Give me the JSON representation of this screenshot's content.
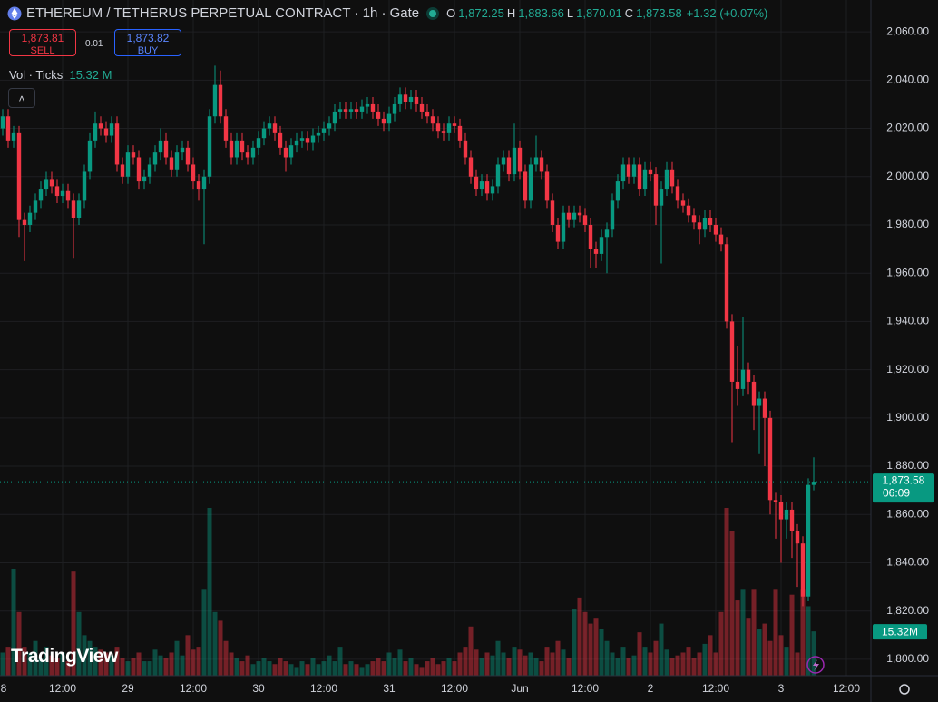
{
  "header": {
    "title": "ETHEREUM / TETHERUS PERPETUAL CONTRACT · 1h · Gate",
    "ohlc": [
      {
        "label": "O",
        "value": "1,872.25"
      },
      {
        "label": "H",
        "value": "1,883.66"
      },
      {
        "label": "L",
        "value": "1,870.01"
      },
      {
        "label": "C",
        "value": "1,873.58"
      }
    ],
    "change": "+1.32 (+0.07%)",
    "sell_price": "1,873.81",
    "sell_label": "SELL",
    "spread": "0.01",
    "buy_price": "1,873.82",
    "buy_label": "BUY",
    "volume_indicator": "Vol · Ticks",
    "volume_indicator_value": "15.32 M",
    "logo": "TradingView"
  },
  "chart_data": {
    "type": "candlestick",
    "up_color": "#089981",
    "down_color": "#f23645",
    "grid": true,
    "open": [
      2020,
      2025,
      2015,
      2018,
      1982,
      1980,
      1985,
      1990,
      1995,
      1999,
      1996,
      1992,
      1994,
      1990,
      1983,
      1990,
      2002,
      2015,
      2022,
      2020,
      2017,
      2022,
      2005,
      2000,
      2010,
      2008,
      1998,
      2000,
      2005,
      2010,
      2015,
      2008,
      2003,
      2010,
      2012,
      2005,
      1998,
      1995,
      2000,
      2025,
      2038,
      2025,
      2015,
      2008,
      2015,
      2010,
      2008,
      2012,
      2016,
      2020,
      2022,
      2018,
      2012,
      2008,
      2013,
      2015,
      2016,
      2014,
      2017,
      2018,
      2020,
      2022,
      2027,
      2028,
      2027,
      2028,
      2027,
      2029,
      2030,
      2027,
      2024,
      2022,
      2026,
      2030,
      2034,
      2031,
      2033,
      2030,
      2027,
      2025,
      2022,
      2019,
      2018,
      2022,
      2021,
      2015,
      2008,
      2000,
      1995,
      1998,
      1993,
      1996,
      2005,
      2008,
      2001,
      2012,
      2002,
      1990,
      2005,
      2008,
      2002,
      1990,
      1980,
      1973,
      1985,
      1982,
      1985,
      1984,
      1980,
      1970,
      1968,
      1975,
      1978,
      1990,
      1998,
      2005,
      2000,
      2005,
      1995,
      2003,
      2001,
      1988,
      1995,
      2003,
      1996,
      1990,
      1988,
      1984,
      1981,
      1978,
      1983,
      1980,
      1976,
      1972,
      1940,
      1915,
      1912,
      1920,
      1915,
      1905,
      1908,
      1900,
      1866,
      1865,
      1858,
      1862,
      1853,
      1848,
      1826,
      1872.25
    ],
    "high": [
      2028,
      2028,
      2021,
      2021,
      1985,
      1988,
      1993,
      1998,
      2002,
      2002,
      1999,
      1997,
      1997,
      1993,
      1993,
      2005,
      2018,
      2027,
      2025,
      2023,
      2025,
      2025,
      2008,
      2013,
      2013,
      2011,
      2003,
      2008,
      2013,
      2020,
      2018,
      2011,
      2013,
      2015,
      2015,
      2008,
      2001,
      2003,
      2028,
      2046,
      2044,
      2028,
      2018,
      2018,
      2018,
      2013,
      2015,
      2019,
      2023,
      2025,
      2025,
      2021,
      2015,
      2016,
      2018,
      2019,
      2019,
      2020,
      2021,
      2023,
      2025,
      2030,
      2031,
      2031,
      2031,
      2031,
      2032,
      2033,
      2033,
      2030,
      2027,
      2029,
      2033,
      2037,
      2037,
      2036,
      2036,
      2033,
      2030,
      2028,
      2025,
      2022,
      2025,
      2025,
      2024,
      2018,
      2011,
      2003,
      2001,
      2001,
      1999,
      2008,
      2011,
      2011,
      2022,
      2015,
      2005,
      2008,
      2017,
      2011,
      2005,
      1993,
      1983,
      1988,
      1988,
      1988,
      1988,
      1987,
      1983,
      1973,
      1978,
      1981,
      1993,
      2001,
      2008,
      2008,
      2008,
      2008,
      2006,
      2006,
      2004,
      1998,
      2006,
      2006,
      1999,
      1993,
      1991,
      1987,
      1984,
      1986,
      1986,
      1983,
      1979,
      1975,
      1943,
      1930,
      1942,
      1923,
      1918,
      1911,
      1911,
      1903,
      1869,
      1868,
      1865,
      1865,
      1856,
      1851,
      1875,
      1883.66
    ],
    "low": [
      2017,
      2012,
      2012,
      1975,
      1965,
      1977,
      1982,
      1987,
      1992,
      1993,
      1989,
      1989,
      1987,
      1966,
      1980,
      1987,
      1999,
      2012,
      2017,
      2014,
      2014,
      2002,
      1997,
      1997,
      2005,
      1995,
      1995,
      1997,
      2002,
      2007,
      2005,
      2000,
      2000,
      2007,
      2002,
      1995,
      1990,
      1972,
      1997,
      2022,
      2022,
      2012,
      2005,
      2005,
      2007,
      2005,
      2005,
      2009,
      2013,
      2017,
      2015,
      2009,
      2002,
      2005,
      2010,
      2012,
      2011,
      2011,
      2014,
      2015,
      2017,
      2019,
      2024,
      2024,
      2024,
      2024,
      2024,
      2026,
      2024,
      2021,
      2019,
      2019,
      2023,
      2027,
      2028,
      2028,
      2027,
      2024,
      2022,
      2019,
      2016,
      2015,
      2015,
      2018,
      2012,
      2005,
      1997,
      1992,
      1992,
      1990,
      1990,
      1993,
      2002,
      1998,
      1998,
      1999,
      1987,
      1987,
      2002,
      1999,
      1987,
      1977,
      1970,
      1970,
      1979,
      1979,
      1981,
      1977,
      1962,
      1962,
      1965,
      1960,
      1975,
      1987,
      1995,
      1997,
      1997,
      1992,
      1992,
      1998,
      1980,
      1964,
      1992,
      1993,
      1987,
      1985,
      1981,
      1978,
      1972,
      1975,
      1977,
      1973,
      1969,
      1937,
      1890,
      1905,
      1909,
      1910,
      1895,
      1885,
      1880,
      1860,
      1850,
      1840,
      1850,
      1842,
      1830,
      1822,
      1824,
      1870.01
    ],
    "close": [
      2025,
      2015,
      2018,
      1982,
      1980,
      1985,
      1990,
      1995,
      1999,
      1996,
      1992,
      1994,
      1990,
      1983,
      1990,
      2002,
      2015,
      2022,
      2020,
      2017,
      2022,
      2005,
      2000,
      2010,
      2008,
      1998,
      2000,
      2005,
      2010,
      2015,
      2008,
      2003,
      2010,
      2012,
      2005,
      1998,
      1995,
      2000,
      2025,
      2038,
      2025,
      2015,
      2008,
      2015,
      2010,
      2008,
      2012,
      2016,
      2020,
      2022,
      2018,
      2012,
      2008,
      2013,
      2015,
      2016,
      2014,
      2017,
      2018,
      2020,
      2022,
      2027,
      2028,
      2027,
      2028,
      2027,
      2029,
      2030,
      2027,
      2024,
      2022,
      2026,
      2030,
      2034,
      2031,
      2033,
      2030,
      2027,
      2025,
      2022,
      2019,
      2018,
      2022,
      2021,
      2015,
      2008,
      2000,
      1995,
      1998,
      1993,
      1996,
      2005,
      2008,
      2001,
      2012,
      2002,
      1990,
      2005,
      2008,
      2002,
      1990,
      1980,
      1973,
      1985,
      1982,
      1985,
      1984,
      1980,
      1970,
      1968,
      1975,
      1978,
      1990,
      1998,
      2005,
      2000,
      2005,
      1995,
      2003,
      2001,
      1988,
      1995,
      2003,
      1996,
      1990,
      1988,
      1984,
      1981,
      1978,
      1983,
      1980,
      1976,
      1972,
      1940,
      1915,
      1912,
      1920,
      1915,
      1905,
      1908,
      1900,
      1866,
      1865,
      1858,
      1862,
      1853,
      1848,
      1826,
      1872.25,
      1873.58
    ],
    "volume": [
      8,
      10,
      37,
      22,
      10,
      8,
      12,
      6,
      10,
      7,
      6,
      8,
      5,
      36,
      22,
      14,
      12,
      10,
      9,
      8,
      7,
      10,
      6,
      5,
      6,
      8,
      5,
      5,
      9,
      7,
      6,
      8,
      12,
      7,
      14,
      9,
      10,
      30,
      58,
      22,
      19,
      12,
      8,
      6,
      5,
      7,
      4,
      5,
      6,
      5,
      4,
      6,
      5,
      4,
      3,
      5,
      4,
      6,
      4,
      5,
      7,
      5,
      10,
      4,
      5,
      4,
      3,
      4,
      5,
      6,
      5,
      8,
      6,
      9,
      5,
      6,
      4,
      3,
      5,
      6,
      4,
      5,
      6,
      5,
      8,
      10,
      17,
      9,
      6,
      8,
      7,
      12,
      8,
      6,
      10,
      9,
      7,
      8,
      6,
      5,
      10,
      8,
      12,
      9,
      6,
      23,
      27,
      22,
      18,
      20,
      16,
      12,
      8,
      6,
      10,
      6,
      7,
      15,
      10,
      8,
      12,
      18,
      9,
      6,
      7,
      8,
      10,
      6,
      8,
      11,
      14,
      8,
      22,
      58,
      50,
      26,
      30,
      20,
      30,
      16,
      18,
      12,
      30,
      14,
      10,
      28,
      8,
      30,
      24,
      15.32
    ],
    "xlim": [
      -0.5,
      159.5
    ],
    "ylim": [
      1793.2,
      2073.2
    ],
    "xticks": [
      {
        "value": -1,
        "label": "8"
      },
      {
        "value": 11,
        "label": "12:00"
      },
      {
        "value": 23,
        "label": "29"
      },
      {
        "value": 35,
        "label": "12:00"
      },
      {
        "value": 47,
        "label": "30"
      },
      {
        "value": 59,
        "label": "12:00"
      },
      {
        "value": 71,
        "label": "31"
      },
      {
        "value": 83,
        "label": "12:00"
      },
      {
        "value": 95,
        "label": "Jun"
      },
      {
        "value": 107,
        "label": "12:00"
      },
      {
        "value": 119,
        "label": "2"
      },
      {
        "value": 131,
        "label": "12:00"
      },
      {
        "value": 143,
        "label": "3"
      },
      {
        "value": 155,
        "label": "12:00"
      }
    ],
    "yticks": [
      {
        "value": 1800,
        "label": "1,800.00"
      },
      {
        "value": 1820,
        "label": "1,820.00"
      },
      {
        "value": 1840,
        "label": "1,840.00"
      },
      {
        "value": 1860,
        "label": "1,860.00"
      },
      {
        "value": 1880,
        "label": "1,880.00"
      },
      {
        "value": 1900,
        "label": "1,900.00"
      },
      {
        "value": 1920,
        "label": "1,920.00"
      },
      {
        "value": 1940,
        "label": "1,940.00"
      },
      {
        "value": 1960,
        "label": "1,960.00"
      },
      {
        "value": 1980,
        "label": "1,980.00"
      },
      {
        "value": 2000,
        "label": "2,000.00"
      },
      {
        "value": 2020,
        "label": "2,020.00"
      },
      {
        "value": 2040,
        "label": "2,040.00"
      },
      {
        "value": 2060,
        "label": "2,060.00"
      }
    ],
    "last_price": {
      "value": 1873.58,
      "label": "1,873.58"
    },
    "countdown": "06:09",
    "last_volume_label": "15.32M"
  }
}
